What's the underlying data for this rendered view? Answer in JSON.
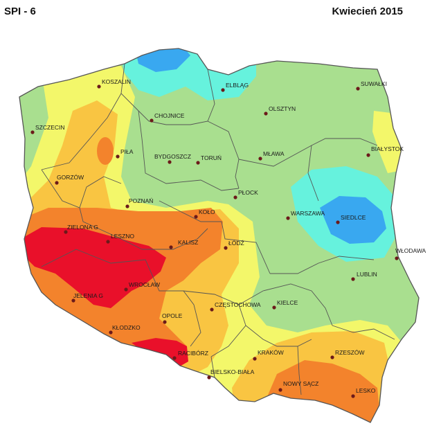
{
  "header": {
    "index_label": "SPI - 6",
    "period_label": "Kwiecień 2015"
  },
  "colors": {
    "green": "#a9df8f",
    "cyan": "#66f2dd",
    "blue": "#39a8f0",
    "yellow": "#f3f76a",
    "light_orange": "#f9c542",
    "orange": "#f3832c",
    "red": "#e9102a",
    "border": "#555555"
  },
  "cities": [
    {
      "id": "koszalin",
      "label": "KOSZALIN"
    },
    {
      "id": "elblag",
      "label": "ELBLĄG"
    },
    {
      "id": "suwalki",
      "label": "SUWAŁKI"
    },
    {
      "id": "chojnice",
      "label": "CHOJNICE"
    },
    {
      "id": "olsztyn",
      "label": "OLSZTYN"
    },
    {
      "id": "szczecin",
      "label": "SZCZECIN"
    },
    {
      "id": "pila",
      "label": "PIŁA"
    },
    {
      "id": "bydgoszcz",
      "label": "BYDGOSZCZ"
    },
    {
      "id": "torun",
      "label": "TORUŃ"
    },
    {
      "id": "mlawa",
      "label": "MŁAWA"
    },
    {
      "id": "bialystok",
      "label": "BIAŁYSTOK"
    },
    {
      "id": "gorzow",
      "label": "GORZÓW"
    },
    {
      "id": "plock",
      "label": "PŁOCK"
    },
    {
      "id": "poznan",
      "label": "POZNAŃ"
    },
    {
      "id": "warszawa",
      "label": "WARSZAWA"
    },
    {
      "id": "siedlce",
      "label": "SIEDLCE"
    },
    {
      "id": "zielona_gora",
      "label": "ZIELONA G"
    },
    {
      "id": "leszno",
      "label": "LESZNO"
    },
    {
      "id": "kolo",
      "label": "KOŁO"
    },
    {
      "id": "kalisz",
      "label": "KALISZ"
    },
    {
      "id": "lodz",
      "label": "ŁÓDŹ"
    },
    {
      "id": "wlodawa",
      "label": "WŁODAWA"
    },
    {
      "id": "lublin",
      "label": "LUBLIN"
    },
    {
      "id": "wroclaw",
      "label": "WROCŁAW"
    },
    {
      "id": "jelenia_gora",
      "label": "JELENIA G"
    },
    {
      "id": "czestochowa",
      "label": "CZĘSTOCHOWA"
    },
    {
      "id": "kielce",
      "label": "KIELCE"
    },
    {
      "id": "opole",
      "label": "OPOLE"
    },
    {
      "id": "klodzko",
      "label": "KŁODZKO"
    },
    {
      "id": "raciborz",
      "label": "RACIBÓRZ"
    },
    {
      "id": "krakow",
      "label": "KRAKÓW"
    },
    {
      "id": "rzeszow",
      "label": "RZESZÓW"
    },
    {
      "id": "bielsko",
      "label": "BIELSKO-BIAŁA"
    },
    {
      "id": "nowy_sacz",
      "label": "NOWY SĄCZ"
    },
    {
      "id": "lesko",
      "label": "LESKO"
    }
  ]
}
